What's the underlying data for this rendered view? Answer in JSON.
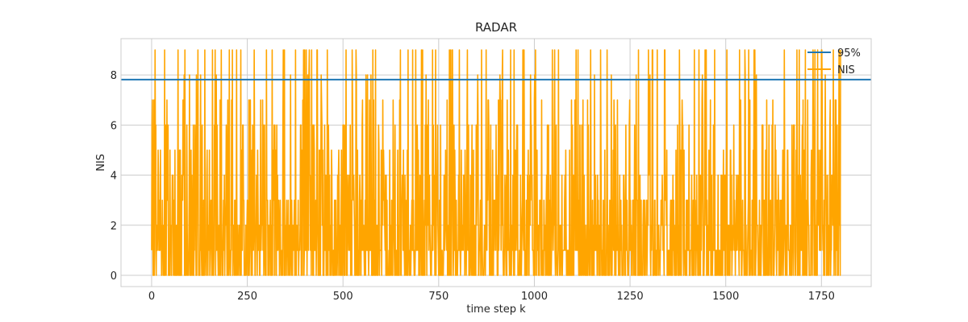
{
  "chart_data": {
    "type": "line",
    "title": "RADAR",
    "xlabel": "time step k",
    "ylabel": "NIS",
    "xlim": [
      -80,
      1880
    ],
    "ylim": [
      -0.45,
      9.45
    ],
    "xticks": [
      0,
      250,
      500,
      750,
      1000,
      1250,
      1500,
      1750
    ],
    "yticks": [
      0,
      2,
      4,
      6,
      8
    ],
    "grid": true,
    "legend_position": "top-right",
    "series": [
      {
        "name": "95%",
        "type": "hline",
        "color": "#1f77b4",
        "y": 7.815
      },
      {
        "name": "NIS",
        "type": "line",
        "color": "#ffa500",
        "x_start": 0,
        "x_end": 1800,
        "n_points": 1801,
        "y_range": [
          0,
          9
        ],
        "values_note_seed": 7
      }
    ]
  }
}
